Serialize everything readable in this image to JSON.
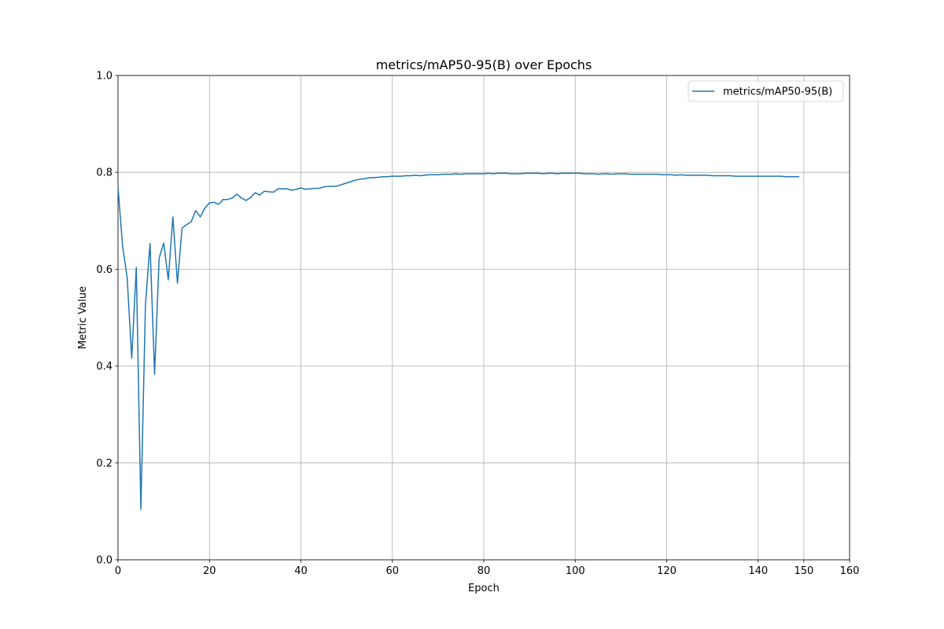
{
  "chart_data": {
    "type": "line",
    "title": "metrics/mAP50-95(B) over Epochs",
    "x_label": "Epoch",
    "y_label": "Metric Value",
    "x": [
      0,
      1,
      2,
      3,
      4,
      5,
      6,
      7,
      8,
      9,
      10,
      11,
      12,
      13,
      14,
      15,
      16,
      17,
      18,
      19,
      20,
      21,
      22,
      23,
      24,
      25,
      26,
      27,
      28,
      29,
      30,
      31,
      32,
      33,
      34,
      35,
      36,
      37,
      38,
      39,
      40,
      41,
      42,
      43,
      44,
      45,
      46,
      47,
      48,
      49,
      50,
      51,
      52,
      53,
      54,
      55,
      56,
      57,
      58,
      59,
      60,
      61,
      62,
      63,
      64,
      65,
      66,
      67,
      68,
      69,
      70,
      71,
      72,
      73,
      74,
      75,
      76,
      77,
      78,
      79,
      80,
      81,
      82,
      83,
      84,
      85,
      86,
      87,
      88,
      89,
      90,
      91,
      92,
      93,
      94,
      95,
      96,
      97,
      98,
      99,
      100,
      101,
      102,
      103,
      104,
      105,
      106,
      107,
      108,
      109,
      110,
      111,
      112,
      113,
      114,
      115,
      116,
      117,
      118,
      119,
      120,
      121,
      122,
      123,
      124,
      125,
      126,
      127,
      128,
      129,
      130,
      131,
      132,
      133,
      134,
      135,
      136,
      137,
      138,
      139,
      140,
      141,
      142,
      143,
      144,
      145,
      146,
      147,
      148,
      149
    ],
    "series": [
      {
        "name": "metrics/mAP50-95(B)",
        "color": "#1f77b4",
        "values": [
          0.77,
          0.648,
          0.583,
          0.416,
          0.604,
          0.104,
          0.526,
          0.653,
          0.383,
          0.623,
          0.654,
          0.578,
          0.708,
          0.571,
          0.685,
          0.692,
          0.698,
          0.721,
          0.708,
          0.726,
          0.737,
          0.738,
          0.734,
          0.744,
          0.744,
          0.747,
          0.755,
          0.747,
          0.742,
          0.748,
          0.758,
          0.753,
          0.761,
          0.76,
          0.759,
          0.766,
          0.766,
          0.766,
          0.763,
          0.765,
          0.768,
          0.765,
          0.766,
          0.767,
          0.767,
          0.77,
          0.771,
          0.771,
          0.772,
          0.775,
          0.778,
          0.781,
          0.784,
          0.786,
          0.787,
          0.789,
          0.789,
          0.79,
          0.791,
          0.791,
          0.792,
          0.792,
          0.792,
          0.793,
          0.793,
          0.794,
          0.793,
          0.794,
          0.795,
          0.795,
          0.795,
          0.796,
          0.796,
          0.796,
          0.797,
          0.796,
          0.797,
          0.797,
          0.797,
          0.797,
          0.797,
          0.798,
          0.797,
          0.798,
          0.798,
          0.798,
          0.797,
          0.797,
          0.797,
          0.798,
          0.798,
          0.798,
          0.798,
          0.797,
          0.798,
          0.798,
          0.797,
          0.798,
          0.798,
          0.798,
          0.798,
          0.798,
          0.797,
          0.797,
          0.797,
          0.796,
          0.797,
          0.797,
          0.796,
          0.797,
          0.797,
          0.797,
          0.796,
          0.796,
          0.796,
          0.796,
          0.796,
          0.796,
          0.796,
          0.795,
          0.795,
          0.795,
          0.794,
          0.795,
          0.794,
          0.794,
          0.794,
          0.794,
          0.794,
          0.794,
          0.793,
          0.793,
          0.793,
          0.793,
          0.793,
          0.792,
          0.792,
          0.792,
          0.792,
          0.792,
          0.792,
          0.792,
          0.792,
          0.792,
          0.792,
          0.792,
          0.791,
          0.791,
          0.791,
          0.791
        ]
      }
    ],
    "xlim": [
      0,
      160
    ],
    "xticks": [
      0,
      20,
      40,
      60,
      80,
      100,
      120,
      140,
      150,
      160
    ],
    "ylim": [
      0,
      1
    ],
    "yticks": [
      {
        "value": 0,
        "label": "0.0"
      },
      0.2,
      0.4,
      0.6,
      0.8,
      {
        "value": 1,
        "label": "1.0"
      }
    ],
    "grid": true,
    "legend": "upper right"
  }
}
